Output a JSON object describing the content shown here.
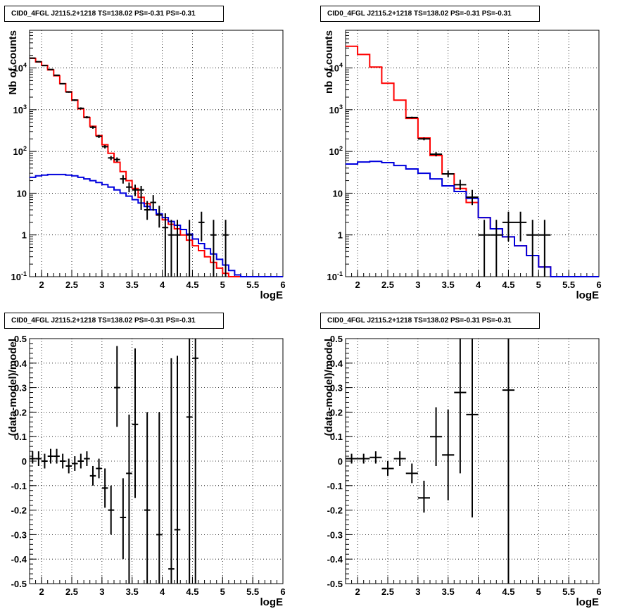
{
  "chart_data": [
    {
      "type": "line",
      "title": "CID0_4FGL J2115.2+1218 TS=138.02 PS=-0.31 PS=-0.31",
      "xlabel": "logE",
      "ylabel": "Nb of counts",
      "log_y": true,
      "xlim": [
        1.8,
        6.0
      ],
      "ylim": [
        0.1,
        80000
      ],
      "grid": true,
      "x_ticks": [
        "2",
        "2.5",
        "3",
        "3.5",
        "4",
        "4.5",
        "5",
        "5.5",
        "6"
      ],
      "y_ticks": [
        "10^-1",
        "1",
        "10",
        "10^2",
        "10^3",
        "10^4"
      ],
      "bin_edges": [
        1.8,
        1.9,
        2.0,
        2.1,
        2.2,
        2.3,
        2.4,
        2.5,
        2.6,
        2.7,
        2.8,
        2.9,
        3.0,
        3.1,
        3.2,
        3.3,
        3.4,
        3.5,
        3.6,
        3.7,
        3.8,
        3.9,
        4.0,
        4.1,
        4.2,
        4.3,
        4.4,
        4.5,
        4.6,
        4.7,
        4.8,
        4.9,
        5.0,
        5.1,
        5.2,
        5.3,
        5.4,
        5.5,
        5.6,
        5.7,
        5.8,
        5.9,
        6.0
      ],
      "series": [
        {
          "color": "#ff0000",
          "style": "step",
          "values": [
            17000,
            14000,
            11500,
            9000,
            6500,
            4200,
            2700,
            1700,
            1050,
            650,
            400,
            240,
            145,
            90,
            55,
            33,
            20,
            13,
            8,
            5.6,
            4.0,
            3.0,
            2.3,
            1.8,
            1.4,
            1.0,
            0.75,
            0.55,
            0.42,
            0.3,
            0.22,
            0.16,
            0.12,
            0.1,
            0.1,
            0.1,
            0.1,
            0.1,
            0.1,
            0.1,
            0.1,
            0.1
          ]
        },
        {
          "color": "#0000dd",
          "style": "step",
          "values": [
            24,
            26,
            27,
            28,
            28,
            28,
            27,
            26,
            24,
            22,
            20,
            18,
            16,
            14,
            12,
            10,
            8.5,
            7,
            5.8,
            4.8,
            4.0,
            3.2,
            2.6,
            2.1,
            1.7,
            1.35,
            1.05,
            0.8,
            0.62,
            0.47,
            0.35,
            0.26,
            0.19,
            0.14,
            0.11,
            0.1,
            0.1,
            0.1,
            0.1,
            0.1,
            0.1,
            0.1
          ]
        },
        {
          "color": "#000000",
          "style": "errorbar",
          "points": [
            {
              "x": 1.85,
              "y": 17200,
              "lo": 16900,
              "hi": 17500,
              "xerr": 0.05
            },
            {
              "x": 1.95,
              "y": 14100,
              "lo": 13800,
              "hi": 14400,
              "xerr": 0.05
            },
            {
              "x": 2.05,
              "y": 11400,
              "lo": 11200,
              "hi": 11600,
              "xerr": 0.05
            },
            {
              "x": 2.15,
              "y": 9200,
              "lo": 9000,
              "hi": 9400,
              "xerr": 0.05
            },
            {
              "x": 2.25,
              "y": 6700,
              "lo": 6500,
              "hi": 6900,
              "xerr": 0.05
            },
            {
              "x": 2.35,
              "y": 4200,
              "lo": 4050,
              "hi": 4350,
              "xerr": 0.05
            },
            {
              "x": 2.45,
              "y": 2650,
              "lo": 2550,
              "hi": 2750,
              "xerr": 0.05
            },
            {
              "x": 2.55,
              "y": 1700,
              "lo": 1620,
              "hi": 1780,
              "xerr": 0.05
            },
            {
              "x": 2.65,
              "y": 1080,
              "lo": 1020,
              "hi": 1140,
              "xerr": 0.05
            },
            {
              "x": 2.75,
              "y": 660,
              "lo": 620,
              "hi": 700,
              "xerr": 0.05
            },
            {
              "x": 2.85,
              "y": 380,
              "lo": 350,
              "hi": 410,
              "xerr": 0.05
            },
            {
              "x": 2.95,
              "y": 230,
              "lo": 210,
              "hi": 250,
              "xerr": 0.05
            },
            {
              "x": 3.05,
              "y": 130,
              "lo": 118,
              "hi": 142,
              "xerr": 0.05
            },
            {
              "x": 3.15,
              "y": 70,
              "lo": 62,
              "hi": 78,
              "xerr": 0.05
            },
            {
              "x": 3.25,
              "y": 64,
              "lo": 56,
              "hi": 72,
              "xerr": 0.05
            },
            {
              "x": 3.35,
              "y": 22,
              "lo": 17,
              "hi": 27,
              "xerr": 0.05
            },
            {
              "x": 3.45,
              "y": 14,
              "lo": 10.5,
              "hi": 18,
              "xerr": 0.05
            },
            {
              "x": 3.55,
              "y": 12,
              "lo": 8.5,
              "hi": 16,
              "xerr": 0.05
            },
            {
              "x": 3.65,
              "y": 12,
              "lo": 4,
              "hi": 15,
              "xerr": 0.05
            },
            {
              "x": 3.75,
              "y": 4,
              "lo": 2.3,
              "hi": 6.5,
              "xerr": 0.05
            },
            {
              "x": 3.85,
              "y": 6,
              "lo": 3.8,
              "hi": 9,
              "xerr": 0.05
            },
            {
              "x": 3.95,
              "y": 3,
              "lo": 1.5,
              "hi": 5,
              "xerr": 0.05
            },
            {
              "x": 4.05,
              "y": 1.5,
              "lo": 0.1,
              "hi": 3.3,
              "xerr": 0.05
            },
            {
              "x": 4.15,
              "y": 1,
              "lo": 0.1,
              "hi": 2.3,
              "xerr": 0.05
            },
            {
              "x": 4.25,
              "y": 1,
              "lo": 0.1,
              "hi": 2.3,
              "xerr": 0.05
            },
            {
              "x": 4.45,
              "y": 1,
              "lo": 0.1,
              "hi": 2.3,
              "xerr": 0.05
            },
            {
              "x": 4.65,
              "y": 2,
              "lo": 0.7,
              "hi": 3.6,
              "xerr": 0.05
            },
            {
              "x": 4.85,
              "y": 1,
              "lo": 0.1,
              "hi": 2.3,
              "xerr": 0.05
            },
            {
              "x": 5.05,
              "y": 1,
              "lo": 0.1,
              "hi": 2.3,
              "xerr": 0.05
            }
          ]
        }
      ]
    },
    {
      "type": "line",
      "title": "CID0_4FGL J2115.2+1218 TS=138.02 PS=-0.31 PS=-0.31",
      "xlabel": "logE",
      "ylabel": "nb of counts",
      "log_y": true,
      "xlim": [
        1.8,
        6.0
      ],
      "ylim": [
        0.1,
        80000
      ],
      "grid": true,
      "x_ticks": [
        "2",
        "2.5",
        "3",
        "3.5",
        "4",
        "4.5",
        "5",
        "5.5",
        "6"
      ],
      "y_ticks": [
        "10^-1",
        "1",
        "10",
        "10^2",
        "10^3",
        "10^4"
      ],
      "bin_edges": [
        1.8,
        2.0,
        2.2,
        2.4,
        2.6,
        2.8,
        3.0,
        3.2,
        3.4,
        3.6,
        3.8,
        4.0,
        4.2,
        4.4,
        4.6,
        4.8,
        5.0,
        5.2,
        5.4,
        5.6,
        5.8,
        6.0
      ],
      "series": [
        {
          "color": "#ff0000",
          "style": "step",
          "values": [
            33000,
            21000,
            10500,
            4300,
            1700,
            620,
            210,
            80,
            29,
            13,
            6,
            2.6,
            1.4,
            0.9,
            0.55,
            0.32,
            0.17,
            0.1,
            0.1,
            0.1,
            0.1
          ]
        },
        {
          "color": "#0000dd",
          "style": "step",
          "values": [
            50,
            56,
            58,
            54,
            46,
            38,
            30,
            22,
            15,
            11,
            7.5,
            2.6,
            1.4,
            0.9,
            0.55,
            0.32,
            0.17,
            0.1,
            0.1,
            0.1,
            0.1
          ]
        },
        {
          "color": "#000000",
          "style": "errorbar",
          "points": [
            {
              "x": 2.9,
              "y": 650,
              "lo": 620,
              "hi": 680,
              "xerr": 0.1
            },
            {
              "x": 3.1,
              "y": 200,
              "lo": 185,
              "hi": 215,
              "xerr": 0.1
            },
            {
              "x": 3.3,
              "y": 86,
              "lo": 76,
              "hi": 96,
              "xerr": 0.1
            },
            {
              "x": 3.5,
              "y": 29,
              "lo": 24,
              "hi": 35,
              "xerr": 0.1
            },
            {
              "x": 3.7,
              "y": 16,
              "lo": 12,
              "hi": 21,
              "xerr": 0.1
            },
            {
              "x": 3.9,
              "y": 8,
              "lo": 5.2,
              "hi": 12,
              "xerr": 0.1
            },
            {
              "x": 4.1,
              "y": 1,
              "lo": 0.1,
              "hi": 2.3,
              "xerr": 0.1
            },
            {
              "x": 4.3,
              "y": 1,
              "lo": 0.1,
              "hi": 2.3,
              "xerr": 0.1
            },
            {
              "x": 4.5,
              "y": 2,
              "lo": 0.7,
              "hi": 3.6,
              "xerr": 0.1
            },
            {
              "x": 4.7,
              "y": 2,
              "lo": 0.7,
              "hi": 3.6,
              "xerr": 0.1
            },
            {
              "x": 4.9,
              "y": 1,
              "lo": 0.1,
              "hi": 2.3,
              "xerr": 0.1
            },
            {
              "x": 5.1,
              "y": 1,
              "lo": 0.1,
              "hi": 2.3,
              "xerr": 0.1
            }
          ]
        }
      ]
    },
    {
      "type": "scatter",
      "title": "CID0_4FGL J2115.2+1218 TS=138.02 PS=-0.31 PS=-0.31",
      "xlabel": "logE",
      "ylabel": "(data-model)/model",
      "log_y": false,
      "xlim": [
        1.8,
        6.0
      ],
      "ylim": [
        -0.5,
        0.5
      ],
      "grid": true,
      "x_ticks": [
        "2",
        "2.5",
        "3",
        "3.5",
        "4",
        "4.5",
        "5",
        "5.5",
        "6"
      ],
      "y_ticks": [
        "-0.5",
        "-0.4",
        "-0.3",
        "-0.2",
        "-0.1",
        "0",
        "0.1",
        "0.2",
        "0.3",
        "0.4",
        "0.5"
      ],
      "series": [
        {
          "color": "#000000",
          "style": "errorbar",
          "points": [
            {
              "x": 1.85,
              "y": 0.01,
              "lo": -0.01,
              "hi": 0.04,
              "xerr": 0.05
            },
            {
              "x": 1.95,
              "y": 0.01,
              "lo": -0.02,
              "hi": 0.04,
              "xerr": 0.05
            },
            {
              "x": 2.05,
              "y": 0.0,
              "lo": -0.03,
              "hi": 0.03,
              "xerr": 0.05
            },
            {
              "x": 2.15,
              "y": 0.02,
              "lo": -0.01,
              "hi": 0.05,
              "xerr": 0.05
            },
            {
              "x": 2.25,
              "y": 0.02,
              "lo": -0.01,
              "hi": 0.05,
              "xerr": 0.05
            },
            {
              "x": 2.35,
              "y": 0.0,
              "lo": -0.03,
              "hi": 0.03,
              "xerr": 0.05
            },
            {
              "x": 2.45,
              "y": -0.02,
              "lo": -0.05,
              "hi": 0.01,
              "xerr": 0.05
            },
            {
              "x": 2.55,
              "y": -0.01,
              "lo": -0.04,
              "hi": 0.02,
              "xerr": 0.05
            },
            {
              "x": 2.65,
              "y": 0.0,
              "lo": -0.03,
              "hi": 0.03,
              "xerr": 0.05
            },
            {
              "x": 2.75,
              "y": 0.01,
              "lo": -0.02,
              "hi": 0.04,
              "xerr": 0.05
            },
            {
              "x": 2.85,
              "y": -0.06,
              "lo": -0.1,
              "hi": -0.02,
              "xerr": 0.05
            },
            {
              "x": 2.95,
              "y": -0.03,
              "lo": -0.07,
              "hi": 0.01,
              "xerr": 0.05
            },
            {
              "x": 3.05,
              "y": -0.11,
              "lo": -0.19,
              "hi": -0.03,
              "xerr": 0.05
            },
            {
              "x": 3.15,
              "y": -0.2,
              "lo": -0.3,
              "hi": -0.1,
              "xerr": 0.05
            },
            {
              "x": 3.25,
              "y": 0.3,
              "lo": 0.14,
              "hi": 0.47,
              "xerr": 0.05
            },
            {
              "x": 3.35,
              "y": -0.23,
              "lo": -0.4,
              "hi": -0.07,
              "xerr": 0.05
            },
            {
              "x": 3.45,
              "y": -0.05,
              "lo": -0.5,
              "hi": 0.19,
              "xerr": 0.05
            },
            {
              "x": 3.55,
              "y": 0.15,
              "lo": -0.15,
              "hi": 0.46,
              "xerr": 0.05
            },
            {
              "x": 3.75,
              "y": -0.2,
              "lo": -0.5,
              "hi": 0.2,
              "xerr": 0.05
            },
            {
              "x": 3.95,
              "y": -0.3,
              "lo": -0.5,
              "hi": 0.2,
              "xerr": 0.05
            },
            {
              "x": 4.15,
              "y": -0.44,
              "lo": -0.5,
              "hi": 0.42,
              "xerr": 0.05
            },
            {
              "x": 4.25,
              "y": -0.28,
              "lo": -0.5,
              "hi": 0.43,
              "xerr": 0.05
            },
            {
              "x": 4.45,
              "y": 0.18,
              "lo": -0.5,
              "hi": 0.5,
              "xerr": 0.05
            },
            {
              "x": 4.55,
              "y": 0.42,
              "lo": -0.5,
              "hi": 0.5,
              "xerr": 0.05
            }
          ]
        }
      ]
    },
    {
      "type": "scatter",
      "title": "CID0_4FGL J2115.2+1218 TS=138.02 PS=-0.31 PS=-0.31",
      "xlabel": "logE",
      "ylabel": "(data-model)/model",
      "log_y": false,
      "xlim": [
        1.8,
        6.0
      ],
      "ylim": [
        -0.5,
        0.5
      ],
      "grid": true,
      "x_ticks": [
        "2",
        "2.5",
        "3",
        "3.5",
        "4",
        "4.5",
        "5",
        "5.5",
        "6"
      ],
      "y_ticks": [
        "-0.5",
        "-0.4",
        "-0.3",
        "-0.2",
        "-0.1",
        "0",
        "0.1",
        "0.2",
        "0.3",
        "0.4",
        "0.5"
      ],
      "series": [
        {
          "color": "#000000",
          "style": "errorbar",
          "points": [
            {
              "x": 1.9,
              "y": 0.01,
              "lo": -0.01,
              "hi": 0.03,
              "xerr": 0.1
            },
            {
              "x": 2.1,
              "y": 0.01,
              "lo": -0.01,
              "hi": 0.03,
              "xerr": 0.1
            },
            {
              "x": 2.3,
              "y": 0.015,
              "lo": -0.01,
              "hi": 0.04,
              "xerr": 0.1
            },
            {
              "x": 2.5,
              "y": -0.03,
              "lo": -0.06,
              "hi": 0.0,
              "xerr": 0.1
            },
            {
              "x": 2.7,
              "y": 0.01,
              "lo": -0.02,
              "hi": 0.04,
              "xerr": 0.1
            },
            {
              "x": 2.9,
              "y": -0.05,
              "lo": -0.09,
              "hi": -0.01,
              "xerr": 0.1
            },
            {
              "x": 3.1,
              "y": -0.15,
              "lo": -0.21,
              "hi": -0.08,
              "xerr": 0.1
            },
            {
              "x": 3.3,
              "y": 0.1,
              "lo": -0.02,
              "hi": 0.22,
              "xerr": 0.1
            },
            {
              "x": 3.5,
              "y": 0.025,
              "lo": -0.16,
              "hi": 0.21,
              "xerr": 0.1
            },
            {
              "x": 3.7,
              "y": 0.28,
              "lo": -0.05,
              "hi": 0.5,
              "xerr": 0.1
            },
            {
              "x": 3.9,
              "y": 0.19,
              "lo": -0.23,
              "hi": 0.5,
              "xerr": 0.1
            },
            {
              "x": 4.5,
              "y": 0.29,
              "lo": -0.5,
              "hi": 0.5,
              "xerr": 0.1
            }
          ]
        }
      ]
    }
  ]
}
